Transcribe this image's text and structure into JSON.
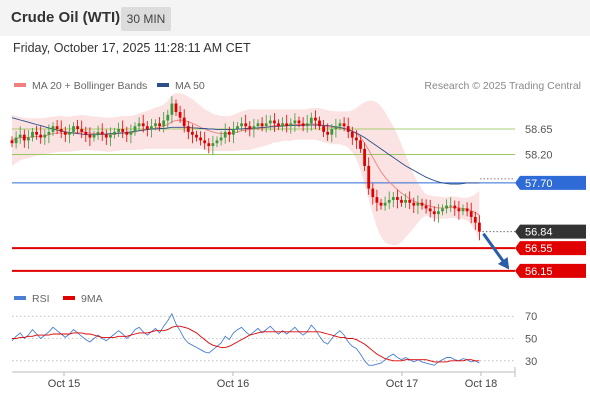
{
  "header": {
    "title": "Crude Oil (WTI)",
    "timeframe": "30 MIN"
  },
  "timestamp": "Friday, October 17, 2025 11:28:11 AM CET",
  "legend": {
    "bollinger": {
      "label": "MA 20 + Bollinger Bands",
      "color": "#f08080"
    },
    "ma50": {
      "label": "MA 50",
      "color": "#2b4f8a"
    },
    "rsi": {
      "label": "RSI",
      "color": "#4a7fd4"
    },
    "rsi_ma": {
      "label": "9MA",
      "color": "#e00000"
    }
  },
  "credit": "Research © 2025 Trading Central",
  "chart_data": [
    {
      "type": "candlestick",
      "ylim": [
        55.9,
        59.25
      ],
      "x_ticks": [
        "Oct 15",
        "Oct 16",
        "Oct 17",
        "Oct 18"
      ],
      "price_levels": [
        {
          "label": "58.65",
          "value": 58.65,
          "style": "green-line",
          "color": "#8bc34a"
        },
        {
          "label": "58.20",
          "value": 58.2,
          "style": "green-line",
          "color": "#8bc34a"
        },
        {
          "label": "57.70",
          "value": 57.7,
          "style": "blue-line",
          "color": "#2e6bd6"
        },
        {
          "label": "56.84",
          "value": 56.84,
          "style": "last-price",
          "color": "#333333"
        },
        {
          "label": "56.55",
          "value": 56.55,
          "style": "red-line",
          "color": "#e00000"
        },
        {
          "label": "56.15",
          "value": 56.15,
          "style": "red-line",
          "color": "#e00000"
        }
      ],
      "bullish_color": "#3a9a3a",
      "bearish_color": "#e00000",
      "arrow_color": "#2a5fa8",
      "close": [
        58.4,
        58.5,
        58.55,
        58.45,
        58.5,
        58.6,
        58.55,
        58.5,
        58.55,
        58.6,
        58.7,
        58.65,
        58.6,
        58.55,
        58.6,
        58.7,
        58.65,
        58.6,
        58.55,
        58.5,
        58.55,
        58.6,
        58.55,
        58.5,
        58.55,
        58.6,
        58.65,
        58.6,
        58.55,
        58.6,
        58.7,
        58.75,
        58.7,
        58.65,
        58.7,
        58.75,
        58.7,
        58.8,
        58.9,
        59.1,
        58.95,
        58.85,
        58.7,
        58.6,
        58.55,
        58.5,
        58.45,
        58.4,
        58.35,
        58.4,
        58.45,
        58.5,
        58.6,
        58.55,
        58.65,
        58.7,
        58.75,
        58.7,
        58.65,
        58.7,
        58.75,
        58.7,
        58.75,
        58.8,
        58.75,
        58.7,
        58.75,
        58.7,
        58.75,
        58.8,
        58.75,
        58.7,
        58.75,
        58.85,
        58.8,
        58.7,
        58.6,
        58.55,
        58.65,
        58.7,
        58.75,
        58.7,
        58.6,
        58.5,
        58.45,
        58.3,
        58.0,
        57.6,
        57.45,
        57.35,
        57.3,
        57.35,
        57.4,
        57.45,
        57.4,
        57.35,
        57.4,
        57.35,
        57.3,
        57.35,
        57.3,
        57.25,
        57.2,
        57.15,
        57.2,
        57.25,
        57.3,
        57.3,
        57.25,
        57.2,
        57.25,
        57.2,
        57.1,
        57.0,
        56.84
      ],
      "ma20": [
        58.45,
        58.48,
        58.5,
        58.5,
        58.5,
        58.52,
        58.52,
        58.52,
        58.53,
        58.55,
        58.57,
        58.58,
        58.58,
        58.57,
        58.57,
        58.58,
        58.59,
        58.6,
        58.59,
        58.58,
        58.57,
        58.57,
        58.56,
        58.55,
        58.55,
        58.56,
        58.57,
        58.58,
        58.58,
        58.58,
        58.6,
        58.62,
        58.63,
        58.64,
        58.65,
        58.67,
        58.68,
        58.7,
        58.73,
        58.78,
        58.8,
        58.81,
        58.8,
        58.78,
        58.75,
        58.72,
        58.68,
        58.65,
        58.62,
        58.6,
        58.58,
        58.57,
        58.57,
        58.57,
        58.58,
        58.6,
        58.62,
        58.63,
        58.64,
        58.65,
        58.66,
        58.67,
        58.68,
        58.7,
        58.71,
        58.71,
        58.72,
        58.72,
        58.72,
        58.73,
        58.73,
        58.73,
        58.73,
        58.74,
        58.74,
        58.73,
        58.71,
        58.69,
        58.68,
        58.67,
        58.67,
        58.66,
        58.64,
        58.61,
        58.57,
        58.5,
        58.4,
        58.28,
        58.15,
        58.02,
        57.9,
        57.8,
        57.72,
        57.65,
        57.58,
        57.52,
        57.47,
        57.42,
        57.38,
        57.35,
        57.33,
        57.31,
        57.29,
        57.27,
        57.26,
        57.26,
        57.26,
        57.27,
        57.27,
        57.26,
        57.25,
        57.24,
        57.21,
        57.18,
        57.13
      ],
      "bb_upper": [
        58.9,
        58.88,
        58.86,
        58.85,
        58.84,
        58.84,
        58.84,
        58.84,
        58.85,
        58.86,
        58.87,
        58.88,
        58.88,
        58.87,
        58.87,
        58.88,
        58.89,
        58.9,
        58.89,
        58.88,
        58.87,
        58.87,
        58.86,
        58.85,
        58.85,
        58.86,
        58.87,
        58.88,
        58.88,
        58.88,
        58.9,
        58.93,
        58.95,
        58.97,
        59.0,
        59.03,
        59.05,
        59.08,
        59.15,
        59.25,
        59.28,
        59.28,
        59.26,
        59.22,
        59.18,
        59.12,
        59.06,
        59.0,
        58.96,
        58.92,
        58.9,
        58.88,
        58.88,
        58.88,
        58.9,
        58.93,
        58.96,
        58.98,
        59.0,
        59.0,
        59.0,
        59.0,
        59.0,
        59.0,
        59.0,
        59.0,
        59.0,
        59.0,
        59.0,
        59.0,
        59.0,
        59.0,
        59.0,
        59.02,
        59.02,
        59.02,
        59.0,
        58.98,
        58.97,
        58.96,
        58.96,
        58.96,
        58.96,
        58.98,
        59.02,
        59.08,
        59.12,
        59.15,
        59.15,
        59.12,
        59.05,
        58.95,
        58.82,
        58.7,
        58.55,
        58.38,
        58.2,
        58.02,
        57.85,
        57.7,
        57.58,
        57.5,
        57.48,
        57.47,
        57.46,
        57.45,
        57.45,
        57.46,
        57.46,
        57.45,
        57.44,
        57.44,
        57.46,
        57.5,
        57.56
      ],
      "bb_lower": [
        58.0,
        58.05,
        58.1,
        58.12,
        58.14,
        58.16,
        58.18,
        58.2,
        58.21,
        58.22,
        58.23,
        58.24,
        58.25,
        58.25,
        58.25,
        58.26,
        58.27,
        58.28,
        58.28,
        58.28,
        58.27,
        58.27,
        58.26,
        58.25,
        58.25,
        58.26,
        58.27,
        58.28,
        58.28,
        58.28,
        58.28,
        58.29,
        58.29,
        58.3,
        58.3,
        58.3,
        58.3,
        58.3,
        58.3,
        58.3,
        58.3,
        58.3,
        58.3,
        58.3,
        58.3,
        58.3,
        58.3,
        58.28,
        58.26,
        58.26,
        58.26,
        58.26,
        58.26,
        58.26,
        58.26,
        58.27,
        58.28,
        58.28,
        58.28,
        58.3,
        58.32,
        58.34,
        58.36,
        58.38,
        58.42,
        58.42,
        58.44,
        58.44,
        58.44,
        58.46,
        58.46,
        58.46,
        58.46,
        58.46,
        58.46,
        58.44,
        58.42,
        58.4,
        58.38,
        58.38,
        58.38,
        58.36,
        58.32,
        58.24,
        58.12,
        57.92,
        57.68,
        57.4,
        57.15,
        56.92,
        56.75,
        56.65,
        56.62,
        56.6,
        56.6,
        56.66,
        56.74,
        56.82,
        56.9,
        57.0,
        57.08,
        57.12,
        57.1,
        57.07,
        57.06,
        57.07,
        57.07,
        57.08,
        57.08,
        57.07,
        57.06,
        57.04,
        56.96,
        56.86,
        56.7
      ],
      "ma50": [
        58.85,
        58.83,
        58.81,
        58.79,
        58.77,
        58.75,
        58.73,
        58.71,
        58.69,
        58.67,
        58.65,
        58.63,
        58.62,
        58.6,
        58.59,
        58.58,
        58.57,
        58.56,
        58.55,
        58.55,
        58.55,
        58.55,
        58.56,
        58.56,
        58.57,
        58.57,
        58.58,
        58.58,
        58.59,
        58.6,
        58.61,
        58.62,
        58.63,
        58.64,
        58.65,
        58.65,
        58.66,
        58.66,
        58.67,
        58.68,
        58.68,
        58.68,
        58.68,
        58.68,
        58.67,
        58.67,
        58.66,
        58.66,
        58.65,
        58.65,
        58.64,
        58.64,
        58.64,
        58.64,
        58.64,
        58.65,
        58.65,
        58.66,
        58.66,
        58.67,
        58.67,
        58.68,
        58.68,
        58.69,
        58.69,
        58.7,
        58.7,
        58.71,
        58.71,
        58.71,
        58.71,
        58.72,
        58.72,
        58.72,
        58.72,
        58.72,
        58.71,
        58.71,
        58.7,
        58.69,
        58.68,
        58.66,
        58.64,
        58.61,
        58.58,
        58.54,
        58.5,
        58.45,
        58.4,
        58.35,
        58.3,
        58.25,
        58.2,
        58.15,
        58.1,
        58.05,
        58.0,
        57.96,
        57.92,
        57.88,
        57.84,
        57.8,
        57.77,
        57.74,
        57.72,
        57.7,
        57.69,
        57.68,
        57.68,
        57.68,
        57.69,
        57.7,
        57.7,
        57.7,
        57.7
      ]
    },
    {
      "type": "line",
      "ylim": [
        20,
        80
      ],
      "y_ticks": [
        70,
        50,
        30
      ],
      "series": [
        {
          "name": "RSI",
          "values": [
            48,
            52,
            55,
            50,
            53,
            58,
            54,
            50,
            53,
            56,
            60,
            57,
            54,
            51,
            54,
            58,
            55,
            52,
            49,
            47,
            50,
            53,
            50,
            48,
            51,
            54,
            57,
            54,
            50,
            53,
            58,
            60,
            56,
            53,
            56,
            59,
            55,
            61,
            66,
            72,
            63,
            57,
            50,
            46,
            44,
            42,
            40,
            38,
            37,
            40,
            43,
            46,
            52,
            49,
            55,
            58,
            60,
            56,
            53,
            56,
            59,
            55,
            58,
            61,
            57,
            54,
            57,
            54,
            57,
            60,
            56,
            53,
            56,
            62,
            58,
            52,
            47,
            45,
            50,
            54,
            57,
            53,
            47,
            43,
            41,
            36,
            30,
            26,
            26,
            27,
            28,
            31,
            34,
            36,
            33,
            31,
            33,
            31,
            29,
            31,
            29,
            28,
            27,
            26,
            29,
            31,
            33,
            33,
            31,
            30,
            32,
            31,
            29,
            30,
            28
          ]
        },
        {
          "name": "9MA",
          "values": [
            50,
            50,
            51,
            51,
            52,
            52,
            53,
            53,
            53,
            53,
            54,
            54,
            54,
            54,
            54,
            55,
            55,
            55,
            54,
            54,
            53,
            52,
            51,
            51,
            51,
            51,
            52,
            52,
            52,
            53,
            54,
            55,
            55,
            55,
            56,
            57,
            57,
            57,
            58,
            60,
            61,
            61,
            60,
            59,
            57,
            55,
            52,
            49,
            46,
            44,
            43,
            42,
            42,
            43,
            45,
            47,
            49,
            51,
            53,
            54,
            55,
            56,
            56,
            56,
            56,
            56,
            56,
            56,
            56,
            56,
            56,
            56,
            56,
            56,
            56,
            56,
            55,
            54,
            53,
            52,
            51,
            51,
            50,
            50,
            49,
            47,
            45,
            42,
            39,
            36,
            34,
            32,
            31,
            30,
            30,
            30,
            31,
            31,
            31,
            31,
            31,
            31,
            30,
            29,
            29,
            29,
            29,
            30,
            30,
            30,
            30,
            31,
            31,
            30,
            30
          ]
        }
      ]
    }
  ]
}
